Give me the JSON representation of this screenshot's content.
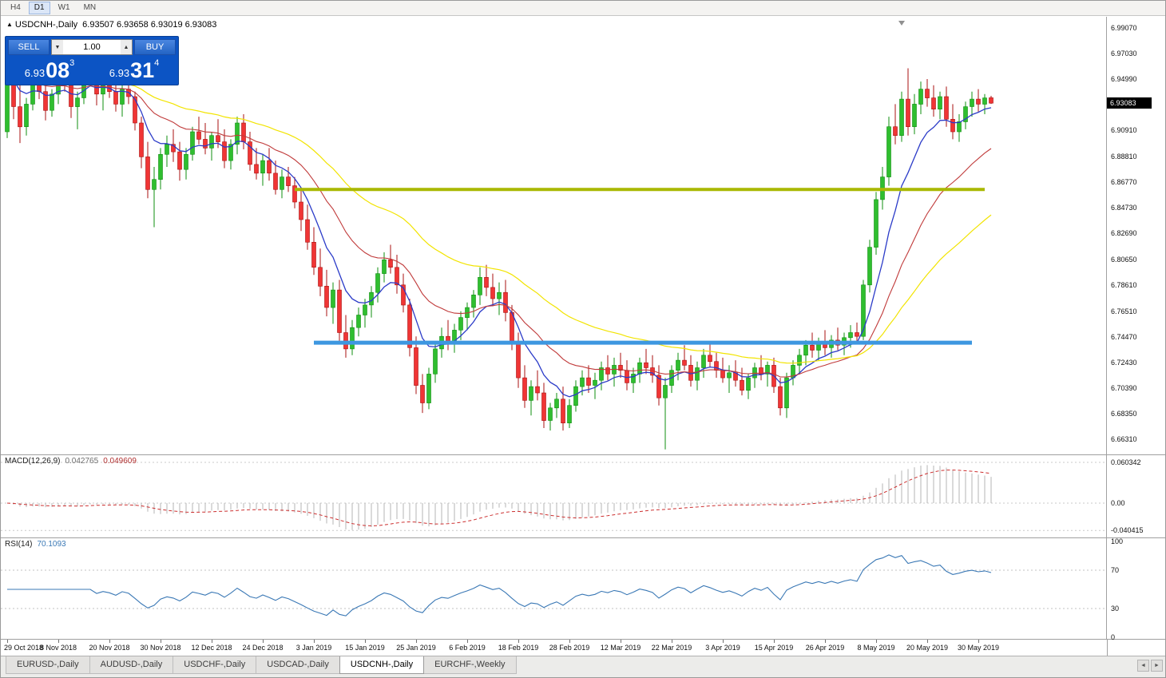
{
  "toolbar": {
    "timeframes": [
      {
        "label": "H4",
        "active": false
      },
      {
        "label": "D1",
        "active": true
      },
      {
        "label": "W1",
        "active": false
      },
      {
        "label": "MN",
        "active": false
      }
    ]
  },
  "chart_header": {
    "symbol_title": "USDCNH-,Daily",
    "ohlc_text": "6.93507 6.93658 6.93019 6.93083"
  },
  "trade_panel": {
    "sell_label": "SELL",
    "buy_label": "BUY",
    "volume": "1.00",
    "sell_price": {
      "prefix": "6.93",
      "big": "08",
      "sup": "3"
    },
    "buy_price": {
      "prefix": "6.93",
      "big": "31",
      "sup": "4"
    }
  },
  "icons": {
    "ohlc_arrow": "▲",
    "volume_down": "▼",
    "volume_up": "▲",
    "tab_scroll_left": "◄",
    "tab_scroll_right": "►"
  },
  "price_axis": {
    "current_price": 6.93083,
    "current_price_badge": "6.93083",
    "labels": [
      {
        "text": "6.99070",
        "value": 6.9907
      },
      {
        "text": "6.97030",
        "value": 6.9703
      },
      {
        "text": "6.94990",
        "value": 6.9499
      },
      {
        "text": "6.90910",
        "value": 6.9091
      },
      {
        "text": "6.88810",
        "value": 6.8881
      },
      {
        "text": "6.86770",
        "value": 6.8677
      },
      {
        "text": "6.84730",
        "value": 6.8473
      },
      {
        "text": "6.82690",
        "value": 6.8269
      },
      {
        "text": "6.80650",
        "value": 6.8065
      },
      {
        "text": "6.78610",
        "value": 6.7861
      },
      {
        "text": "6.76510",
        "value": 6.7651
      },
      {
        "text": "6.74470",
        "value": 6.7447
      },
      {
        "text": "6.72430",
        "value": 6.7243
      },
      {
        "text": "6.70390",
        "value": 6.7039
      },
      {
        "text": "6.68350",
        "value": 6.6835
      },
      {
        "text": "6.66310",
        "value": 6.6631
      }
    ]
  },
  "indicators": {
    "macd": {
      "label": "MACD(12,26,9)",
      "value1": "0.042765",
      "value2": "0.049609",
      "axis_labels": [
        {
          "text": "0.060342",
          "value": 0.060342
        },
        {
          "text": "0.00",
          "value": 0
        },
        {
          "text": "-0.040415",
          "value": -0.040415
        }
      ]
    },
    "rsi": {
      "label": "RSI(14)",
      "value": "70.1093",
      "axis_labels": [
        {
          "text": "100",
          "value": 100
        },
        {
          "text": "70",
          "value": 70
        },
        {
          "text": "30",
          "value": 30
        },
        {
          "text": "0",
          "value": 0
        }
      ],
      "dashed_levels": [
        70,
        30
      ]
    }
  },
  "date_axis": {
    "labels": [
      "29 Oct 2018",
      "8 Nov 2018",
      "20 Nov 2018",
      "30 Nov 2018",
      "12 Dec 2018",
      "24 Dec 2018",
      "3 Jan 2019",
      "15 Jan 2019",
      "25 Jan 2019",
      "6 Feb 2019",
      "18 Feb 2019",
      "28 Feb 2019",
      "12 Mar 2019",
      "22 Mar 2019",
      "3 Apr 2019",
      "15 Apr 2019",
      "26 Apr 2019",
      "8 May 2019",
      "20 May 2019",
      "30 May 2019"
    ]
  },
  "tabs": {
    "items": [
      {
        "label": "EURUSD-,Daily",
        "active": false
      },
      {
        "label": "AUDUSD-,Daily",
        "active": false
      },
      {
        "label": "USDCHF-,Daily",
        "active": false
      },
      {
        "label": "USDCAD-,Daily",
        "active": false
      },
      {
        "label": "USDCNH-,Daily",
        "active": true
      },
      {
        "label": "EURCHF-,Weekly",
        "active": false
      }
    ]
  },
  "colors": {
    "up_candle": "#2fbe2f",
    "up_stroke": "#0f8f0f",
    "down_candle": "#f03535",
    "down_stroke": "#aa1010",
    "ma_fast": "#2b3bc8",
    "ma_mid": "#c03a3a",
    "ma_slow": "#f2e400",
    "hline_olive": "#a9b800",
    "hline_blue": "#3d97e0",
    "macd_hist": "#b6b6b6",
    "macd_signal": "#cc2f2f",
    "rsi_line": "#3a78b5",
    "badge_bg": "#000000",
    "panel_blue": "#0c54c4",
    "button_blue": "#2e72d8"
  },
  "chart_data": {
    "type": "candlestick",
    "symbol": "USDCNH-",
    "timeframe": "Daily",
    "title": "USDCNH-,Daily",
    "last_ohlc": {
      "open": 6.93507,
      "high": 6.93658,
      "low": 6.93019,
      "close": 6.93083
    },
    "y_axis": {
      "min": 6.6631,
      "max": 6.9907
    },
    "x_tick_every": 8,
    "x_tick_labels": [
      "29 Oct 2018",
      "8 Nov 2018",
      "20 Nov 2018",
      "30 Nov 2018",
      "12 Dec 2018",
      "24 Dec 2018",
      "3 Jan 2019",
      "15 Jan 2019",
      "25 Jan 2019",
      "6 Feb 2019",
      "18 Feb 2019",
      "28 Feb 2019",
      "12 Mar 2019",
      "22 Mar 2019",
      "3 Apr 2019",
      "15 Apr 2019",
      "26 Apr 2019",
      "8 May 2019",
      "20 May 2019",
      "30 May 2019"
    ],
    "ohlc": [
      [
        6.908,
        6.962,
        6.903,
        6.955
      ],
      [
        6.955,
        6.96,
        6.918,
        6.928
      ],
      [
        6.928,
        6.945,
        6.899,
        6.912
      ],
      [
        6.912,
        6.935,
        6.905,
        6.93
      ],
      [
        6.93,
        6.952,
        6.925,
        6.948
      ],
      [
        6.948,
        6.958,
        6.934,
        6.94
      ],
      [
        6.94,
        6.95,
        6.917,
        6.925
      ],
      [
        6.925,
        6.942,
        6.92,
        6.938
      ],
      [
        6.938,
        6.955,
        6.93,
        6.95
      ],
      [
        6.95,
        6.962,
        6.94,
        6.945
      ],
      [
        6.945,
        6.95,
        6.919,
        6.928
      ],
      [
        6.928,
        6.94,
        6.91,
        6.935
      ],
      [
        6.935,
        6.958,
        6.93,
        6.952
      ],
      [
        6.952,
        6.965,
        6.945,
        6.958
      ],
      [
        6.958,
        6.963,
        6.929,
        6.938
      ],
      [
        6.938,
        6.95,
        6.925,
        6.945
      ],
      [
        6.945,
        6.955,
        6.935,
        6.94
      ],
      [
        6.94,
        6.948,
        6.924,
        6.93
      ],
      [
        6.93,
        6.945,
        6.92,
        6.942
      ],
      [
        6.942,
        6.95,
        6.93,
        6.936
      ],
      [
        6.936,
        6.94,
        6.909,
        6.915
      ],
      [
        6.915,
        6.92,
        6.879,
        6.888
      ],
      [
        6.888,
        6.9,
        6.855,
        6.862
      ],
      [
        6.862,
        6.88,
        6.832,
        6.87
      ],
      [
        6.87,
        6.895,
        6.862,
        6.89
      ],
      [
        6.89,
        6.905,
        6.88,
        6.898
      ],
      [
        6.898,
        6.91,
        6.884,
        6.892
      ],
      [
        6.892,
        6.9,
        6.869,
        6.878
      ],
      [
        6.878,
        6.895,
        6.87,
        6.89
      ],
      [
        6.89,
        6.912,
        6.885,
        6.908
      ],
      [
        6.908,
        6.92,
        6.898,
        6.902
      ],
      [
        6.902,
        6.915,
        6.89,
        6.895
      ],
      [
        6.895,
        6.908,
        6.885,
        6.905
      ],
      [
        6.905,
        6.918,
        6.895,
        6.9
      ],
      [
        6.9,
        6.91,
        6.879,
        6.885
      ],
      [
        6.885,
        6.902,
        6.878,
        6.898
      ],
      [
        6.898,
        6.92,
        6.89,
        6.915
      ],
      [
        6.915,
        6.922,
        6.894,
        6.9
      ],
      [
        6.9,
        6.908,
        6.877,
        6.882
      ],
      [
        6.882,
        6.895,
        6.87,
        6.875
      ],
      [
        6.875,
        6.89,
        6.865,
        6.885
      ],
      [
        6.885,
        6.895,
        6.869,
        6.875
      ],
      [
        6.875,
        6.885,
        6.858,
        6.862
      ],
      [
        6.862,
        6.878,
        6.855,
        6.872
      ],
      [
        6.872,
        6.88,
        6.86,
        6.865
      ],
      [
        6.865,
        6.872,
        6.847,
        6.852
      ],
      [
        6.852,
        6.862,
        6.829,
        6.838
      ],
      [
        6.838,
        6.85,
        6.814,
        6.82
      ],
      [
        6.82,
        6.832,
        6.794,
        6.8
      ],
      [
        6.8,
        6.815,
        6.777,
        6.785
      ],
      [
        6.785,
        6.798,
        6.761,
        6.768
      ],
      [
        6.768,
        6.788,
        6.755,
        6.782
      ],
      [
        6.782,
        6.79,
        6.741,
        6.748
      ],
      [
        6.748,
        6.762,
        6.728,
        6.735
      ],
      [
        6.735,
        6.758,
        6.73,
        6.752
      ],
      [
        6.752,
        6.768,
        6.745,
        6.762
      ],
      [
        6.762,
        6.775,
        6.752,
        6.77
      ],
      [
        6.77,
        6.785,
        6.76,
        6.78
      ],
      [
        6.78,
        6.8,
        6.772,
        6.795
      ],
      [
        6.795,
        6.812,
        6.788,
        6.806
      ],
      [
        6.806,
        6.818,
        6.795,
        6.8
      ],
      [
        6.8,
        6.81,
        6.779,
        6.786
      ],
      [
        6.786,
        6.795,
        6.764,
        6.77
      ],
      [
        6.77,
        6.775,
        6.729,
        6.736
      ],
      [
        6.736,
        6.745,
        6.699,
        6.706
      ],
      [
        6.706,
        6.715,
        6.684,
        6.692
      ],
      [
        6.692,
        6.72,
        6.687,
        6.715
      ],
      [
        6.715,
        6.74,
        6.708,
        6.735
      ],
      [
        6.735,
        6.752,
        6.728,
        6.745
      ],
      [
        6.745,
        6.758,
        6.734,
        6.74
      ],
      [
        6.74,
        6.755,
        6.732,
        6.75
      ],
      [
        6.75,
        6.765,
        6.742,
        6.76
      ],
      [
        6.76,
        6.772,
        6.75,
        6.768
      ],
      [
        6.768,
        6.782,
        6.76,
        6.778
      ],
      [
        6.778,
        6.8,
        6.77,
        6.792
      ],
      [
        6.792,
        6.802,
        6.777,
        6.784
      ],
      [
        6.784,
        6.795,
        6.769,
        6.775
      ],
      [
        6.775,
        6.788,
        6.762,
        6.78
      ],
      [
        6.78,
        6.79,
        6.757,
        6.764
      ],
      [
        6.764,
        6.77,
        6.734,
        6.74
      ],
      [
        6.74,
        6.748,
        6.704,
        6.712
      ],
      [
        6.712,
        6.722,
        6.688,
        6.694
      ],
      [
        6.694,
        6.71,
        6.682,
        6.705
      ],
      [
        6.705,
        6.718,
        6.694,
        6.7
      ],
      [
        6.7,
        6.708,
        6.672,
        6.678
      ],
      [
        6.678,
        6.692,
        6.67,
        6.688
      ],
      [
        6.688,
        6.7,
        6.68,
        6.695
      ],
      [
        6.695,
        6.705,
        6.67,
        6.676
      ],
      [
        6.676,
        6.695,
        6.672,
        6.69
      ],
      [
        6.69,
        6.71,
        6.685,
        6.705
      ],
      [
        6.705,
        6.718,
        6.698,
        6.712
      ],
      [
        6.712,
        6.722,
        6.7,
        6.706
      ],
      [
        6.706,
        6.716,
        6.695,
        6.71
      ],
      [
        6.71,
        6.725,
        6.702,
        6.72
      ],
      [
        6.72,
        6.73,
        6.71,
        6.715
      ],
      [
        6.715,
        6.728,
        6.705,
        6.722
      ],
      [
        6.722,
        6.732,
        6.712,
        6.718
      ],
      [
        6.718,
        6.726,
        6.702,
        6.708
      ],
      [
        6.708,
        6.72,
        6.7,
        6.715
      ],
      [
        6.715,
        6.728,
        6.708,
        6.724
      ],
      [
        6.724,
        6.735,
        6.715,
        6.72
      ],
      [
        6.72,
        6.73,
        6.708,
        6.714
      ],
      [
        6.714,
        6.722,
        6.69,
        6.696
      ],
      [
        6.696,
        6.712,
        6.655,
        6.706
      ],
      [
        6.706,
        6.722,
        6.7,
        6.718
      ],
      [
        6.718,
        6.732,
        6.71,
        6.726
      ],
      [
        6.726,
        6.738,
        6.718,
        6.722
      ],
      [
        6.722,
        6.73,
        6.705,
        6.71
      ],
      [
        6.71,
        6.725,
        6.702,
        6.72
      ],
      [
        6.72,
        6.735,
        6.712,
        6.73
      ],
      [
        6.73,
        6.74,
        6.72,
        6.725
      ],
      [
        6.725,
        6.732,
        6.712,
        6.718
      ],
      [
        6.718,
        6.728,
        6.708,
        6.712
      ],
      [
        6.712,
        6.722,
        6.7,
        6.716
      ],
      [
        6.716,
        6.726,
        6.705,
        6.71
      ],
      [
        6.71,
        6.72,
        6.698,
        6.702
      ],
      [
        6.702,
        6.715,
        6.695,
        6.712
      ],
      [
        6.712,
        6.724,
        6.704,
        6.72
      ],
      [
        6.72,
        6.73,
        6.71,
        6.715
      ],
      [
        6.715,
        6.725,
        6.705,
        6.722
      ],
      [
        6.722,
        6.728,
        6.7,
        6.705
      ],
      [
        6.705,
        6.712,
        6.682,
        6.688
      ],
      [
        6.688,
        6.716,
        6.68,
        6.712
      ],
      [
        6.712,
        6.726,
        6.706,
        6.722
      ],
      [
        6.722,
        6.735,
        6.715,
        6.73
      ],
      [
        6.73,
        6.742,
        6.722,
        6.738
      ],
      [
        6.738,
        6.748,
        6.728,
        6.734
      ],
      [
        6.734,
        6.744,
        6.726,
        6.74
      ],
      [
        6.74,
        6.75,
        6.73,
        6.736
      ],
      [
        6.736,
        6.746,
        6.728,
        6.742
      ],
      [
        6.742,
        6.752,
        6.734,
        6.738
      ],
      [
        6.738,
        6.748,
        6.73,
        6.744
      ],
      [
        6.744,
        6.754,
        6.736,
        6.748
      ],
      [
        6.748,
        6.756,
        6.74,
        6.745
      ],
      [
        6.745,
        6.79,
        6.742,
        6.786
      ],
      [
        6.786,
        6.822,
        6.78,
        6.816
      ],
      [
        6.816,
        6.86,
        6.81,
        6.854
      ],
      [
        6.854,
        6.88,
        6.846,
        6.872
      ],
      [
        6.872,
        6.92,
        6.865,
        6.912
      ],
      [
        6.912,
        6.93,
        6.898,
        6.905
      ],
      [
        6.905,
        6.94,
        6.9,
        6.934
      ],
      [
        6.934,
        6.9586,
        6.905,
        6.912
      ],
      [
        6.912,
        6.938,
        6.906,
        6.93
      ],
      [
        6.93,
        6.948,
        6.922,
        6.942
      ],
      [
        6.942,
        6.95,
        6.928,
        6.935
      ],
      [
        6.935,
        6.945,
        6.92,
        6.926
      ],
      [
        6.926,
        6.94,
        6.918,
        6.936
      ],
      [
        6.936,
        6.944,
        6.912,
        6.918
      ],
      [
        6.918,
        6.93,
        6.902,
        6.908
      ],
      [
        6.908,
        6.922,
        6.9,
        6.916
      ],
      [
        6.916,
        6.932,
        6.91,
        6.928
      ],
      [
        6.928,
        6.94,
        6.92,
        6.934
      ],
      [
        6.934,
        6.942,
        6.924,
        6.93
      ],
      [
        6.93,
        6.938,
        6.922,
        6.935
      ],
      [
        6.9351,
        6.9366,
        6.9302,
        6.9308
      ]
    ],
    "overlays": {
      "moving_averages": [
        {
          "name": "fast-ma",
          "period": 8,
          "color_key": "ma_fast",
          "width": 1.3
        },
        {
          "name": "mid-ma",
          "period": 21,
          "color_key": "ma_mid",
          "width": 1.1
        },
        {
          "name": "slow-ma",
          "period": 45,
          "color_key": "ma_slow",
          "width": 1.2
        }
      ],
      "horizontal_lines": [
        {
          "name": "resistance-line",
          "price": 6.862,
          "from_index": 45,
          "to_index": 153,
          "color_key": "hline_olive",
          "width": 4
        },
        {
          "name": "support-line",
          "price": 6.74,
          "from_index": 48,
          "to_index": 151,
          "color_key": "hline_blue",
          "width": 5
        }
      ]
    },
    "macd": {
      "fast": 12,
      "slow": 26,
      "signal": 9,
      "current_values": [
        0.042765,
        0.049609
      ],
      "axis_range": [
        -0.040415,
        0.060342
      ]
    },
    "rsi": {
      "period": 14,
      "current_value": 70.1093,
      "levels": [
        70,
        30
      ],
      "range": [
        0,
        100
      ]
    }
  }
}
